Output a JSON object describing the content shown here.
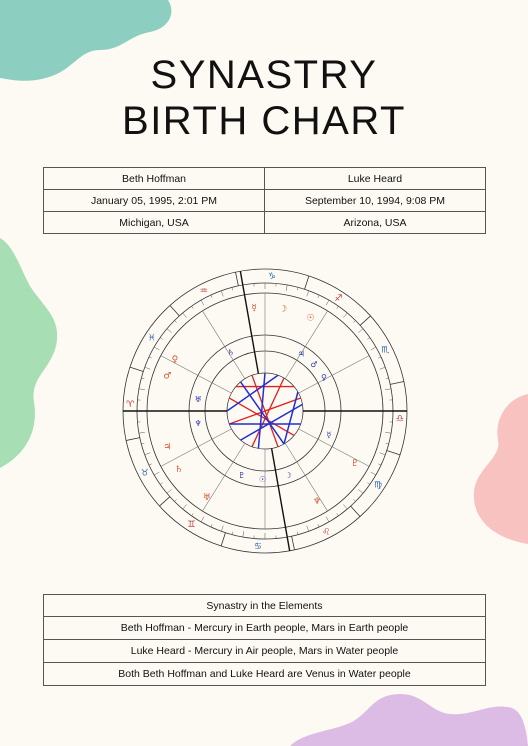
{
  "page": {
    "title_line1": "SYNASTRY",
    "title_line2": "BIRTH CHART"
  },
  "people": [
    {
      "name": "Beth Hoffman",
      "birth": "January 05, 1995, 2:01 PM",
      "place": "Michigan, USA"
    },
    {
      "name": "Luke Heard",
      "birth": "September 10, 1994, 9:08 PM",
      "place": "Arizona, USA"
    }
  ],
  "elements": {
    "heading": "Synastry in the Elements",
    "rows": [
      "Beth Hoffman - Mercury in Earth people, Mars in Earth people",
      "Luke Heard - Mercury in Air people, Mars in Water people",
      "Both Beth Hoffman and Luke Heard are Venus in Water people"
    ]
  },
  "colors": {
    "background": "#fdfaf4",
    "blob_teal": "#8ccfc0",
    "blob_green": "#a8deb4",
    "blob_pink": "#f7c2c0",
    "blob_lilac": "#dcbce4",
    "inner_planets": "#2b3aa8",
    "outer_planets": "#d4552e",
    "aspect_red": "#e02020",
    "aspect_blue": "#2030d0"
  }
}
